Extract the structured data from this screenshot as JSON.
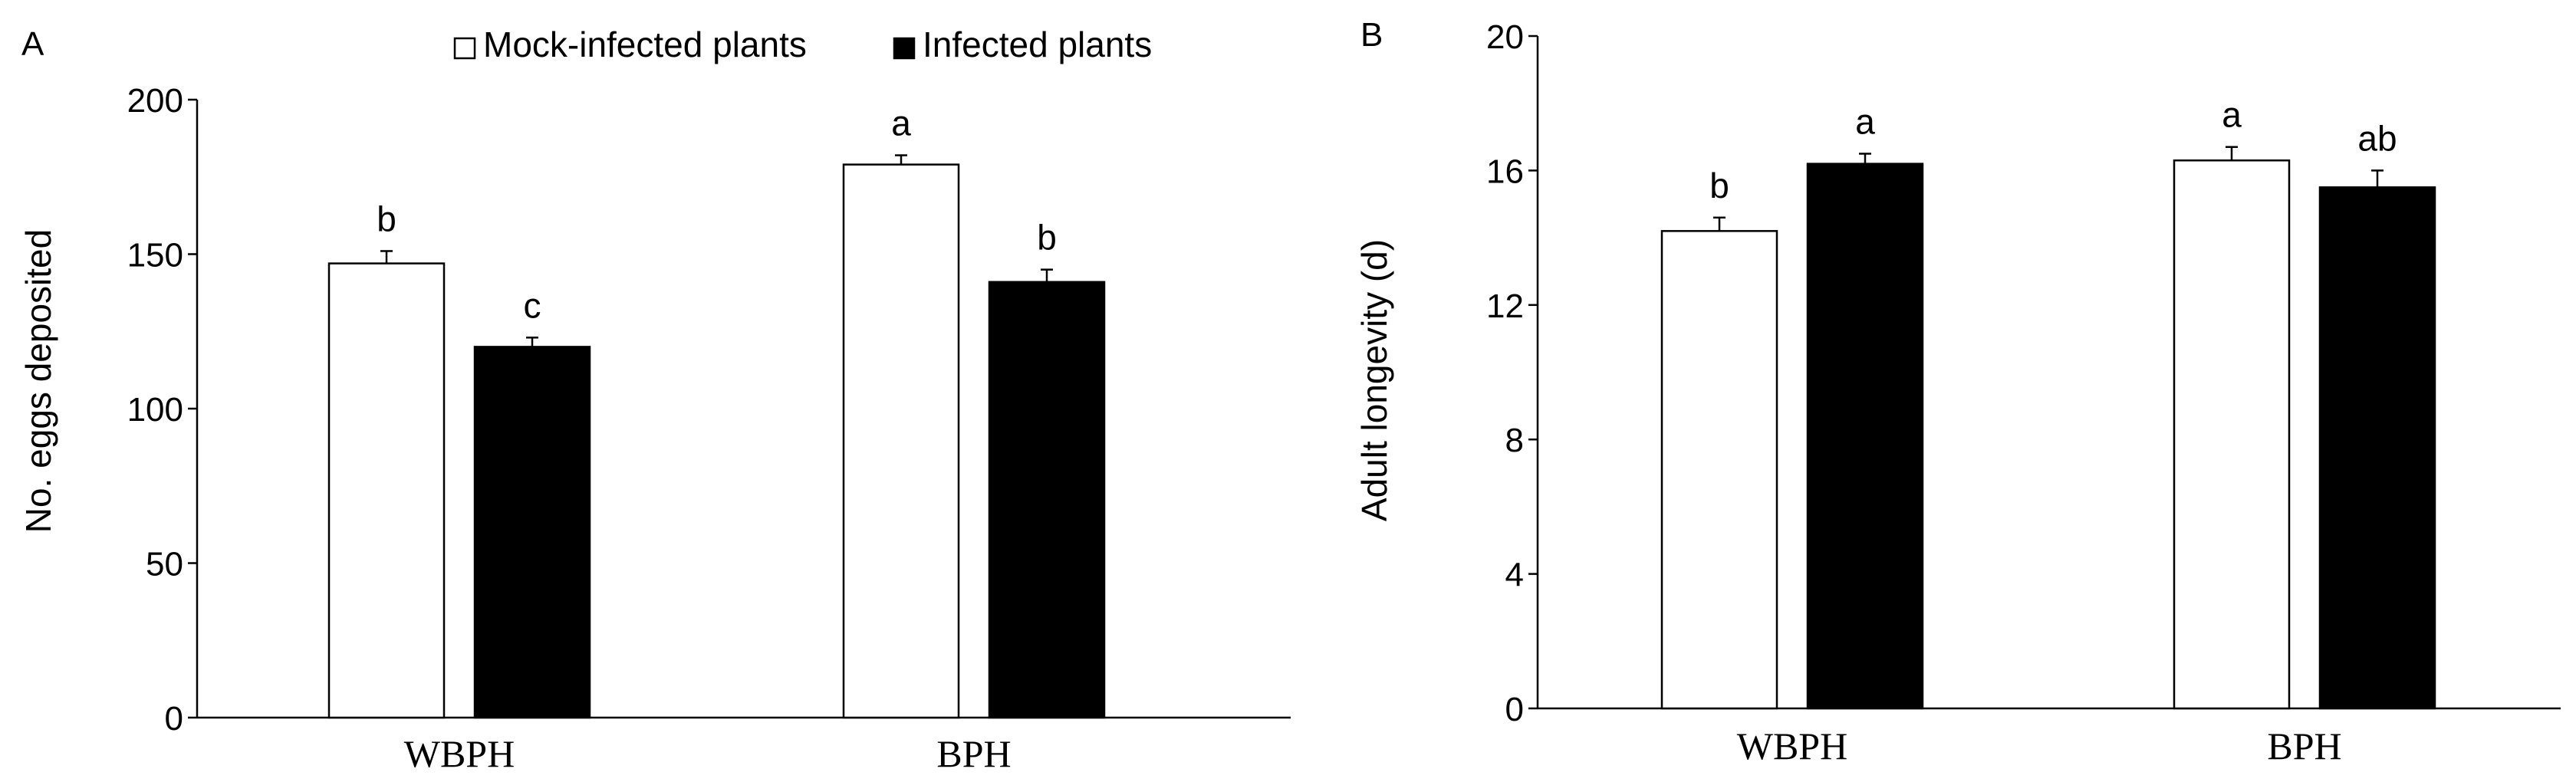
{
  "legend": {
    "items": [
      {
        "label": "Mock-infected plants",
        "color": "#ffffff"
      },
      {
        "label": "Infected plants",
        "color": "#000000"
      }
    ],
    "placement": "top-center"
  },
  "chart_data": [
    {
      "type": "bar",
      "panel_label": "A",
      "categories": [
        "WBPH",
        "BPH"
      ],
      "series": [
        {
          "name": "Mock-infected plants",
          "color": "#ffffff",
          "values": [
            147,
            179
          ],
          "errors": [
            4,
            3
          ],
          "letters": [
            "b",
            "a"
          ]
        },
        {
          "name": "Infected plants",
          "color": "#000000",
          "values": [
            120,
            141
          ],
          "errors": [
            3,
            4
          ],
          "letters": [
            "c",
            "b"
          ]
        }
      ],
      "xlabel": "",
      "ylabel": "No. eggs deposited",
      "ylim": [
        0,
        200
      ],
      "yticks": [
        "0",
        "50",
        "100",
        "150",
        "200"
      ],
      "grid": false
    },
    {
      "type": "bar",
      "panel_label": "B",
      "categories": [
        "WBPH",
        "BPH"
      ],
      "series": [
        {
          "name": "Mock-infected plants",
          "color": "#ffffff",
          "values": [
            14.2,
            16.3
          ],
          "errors": [
            0.4,
            0.4
          ],
          "letters": [
            "b",
            "a"
          ]
        },
        {
          "name": "Infected plants",
          "color": "#000000",
          "values": [
            16.2,
            15.5
          ],
          "errors": [
            0.3,
            0.5
          ],
          "letters": [
            "a",
            "ab"
          ]
        }
      ],
      "xlabel": "",
      "ylabel": "Adult longevity (d)",
      "ylim": [
        0,
        20
      ],
      "yticks": [
        "0",
        "4",
        "8",
        "12",
        "16",
        "20"
      ],
      "grid": false
    }
  ]
}
